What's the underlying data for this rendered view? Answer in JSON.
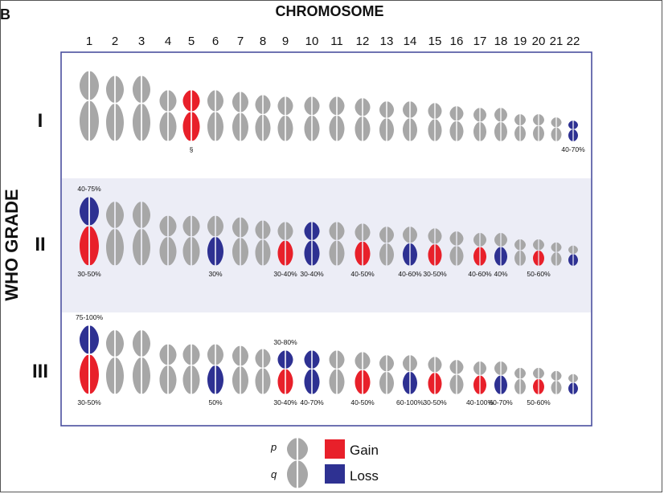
{
  "panel_letter": "B",
  "x_title": "CHROMOSOME",
  "y_title": "WHO GRADE",
  "chromosome_numbers": [
    "1",
    "2",
    "3",
    "4",
    "5",
    "6",
    "7",
    "8",
    "9",
    "10",
    "11",
    "12",
    "13",
    "14",
    "15",
    "16",
    "17",
    "18",
    "19",
    "20",
    "21",
    "22"
  ],
  "colors": {
    "gain": "#e8202a",
    "loss": "#2e3192",
    "normal": "#a7a7a7",
    "panel_border": "#4a4f9e",
    "band": "#ecedf6"
  },
  "grades": [
    {
      "label": "I",
      "arms": [
        {
          "chr": 5,
          "arm": "both",
          "status": "gain"
        },
        {
          "chr": 22,
          "arm": "both",
          "status": "loss"
        }
      ],
      "annotations": [
        {
          "chr": 5,
          "pos": "below",
          "text": "§"
        },
        {
          "chr": 22,
          "pos": "below",
          "text": "40-70%"
        }
      ]
    },
    {
      "label": "II",
      "arms": [
        {
          "chr": 1,
          "arm": "p",
          "status": "loss"
        },
        {
          "chr": 1,
          "arm": "q",
          "status": "gain"
        },
        {
          "chr": 6,
          "arm": "q",
          "status": "loss"
        },
        {
          "chr": 9,
          "arm": "q",
          "status": "gain"
        },
        {
          "chr": 10,
          "arm": "both",
          "status": "loss"
        },
        {
          "chr": 12,
          "arm": "q",
          "status": "gain"
        },
        {
          "chr": 14,
          "arm": "q",
          "status": "loss"
        },
        {
          "chr": 15,
          "arm": "q",
          "status": "gain"
        },
        {
          "chr": 17,
          "arm": "q",
          "status": "gain"
        },
        {
          "chr": 18,
          "arm": "q",
          "status": "loss"
        },
        {
          "chr": 20,
          "arm": "q",
          "status": "gain"
        },
        {
          "chr": 22,
          "arm": "q",
          "status": "loss"
        }
      ],
      "annotations": [
        {
          "chr": 1,
          "pos": "above",
          "text": "40-75%"
        },
        {
          "chr": 1,
          "pos": "below",
          "text": "30-50%"
        },
        {
          "chr": 6,
          "pos": "below",
          "text": "30%"
        },
        {
          "chr": 9,
          "pos": "below",
          "text": "30-40%"
        },
        {
          "chr": 10,
          "pos": "below",
          "text": "30-40%"
        },
        {
          "chr": 12,
          "pos": "below",
          "text": "40-50%"
        },
        {
          "chr": 14,
          "pos": "below",
          "text": "40-60%"
        },
        {
          "chr": 15,
          "pos": "below",
          "text": "30-50%"
        },
        {
          "chr": 17,
          "pos": "below",
          "text": "40-60%"
        },
        {
          "chr": 18,
          "pos": "below",
          "text": "40%"
        },
        {
          "chr": 20,
          "pos": "below",
          "text": "50-60%"
        }
      ]
    },
    {
      "label": "III",
      "arms": [
        {
          "chr": 1,
          "arm": "p",
          "status": "loss"
        },
        {
          "chr": 1,
          "arm": "q",
          "status": "gain"
        },
        {
          "chr": 6,
          "arm": "q",
          "status": "loss"
        },
        {
          "chr": 9,
          "arm": "p",
          "status": "loss"
        },
        {
          "chr": 9,
          "arm": "q",
          "status": "gain"
        },
        {
          "chr": 10,
          "arm": "both",
          "status": "loss"
        },
        {
          "chr": 12,
          "arm": "q",
          "status": "gain"
        },
        {
          "chr": 14,
          "arm": "q",
          "status": "loss"
        },
        {
          "chr": 15,
          "arm": "q",
          "status": "gain"
        },
        {
          "chr": 17,
          "arm": "q",
          "status": "gain"
        },
        {
          "chr": 18,
          "arm": "q",
          "status": "loss"
        },
        {
          "chr": 20,
          "arm": "q",
          "status": "gain"
        },
        {
          "chr": 22,
          "arm": "q",
          "status": "loss"
        }
      ],
      "annotations": [
        {
          "chr": 1,
          "pos": "above",
          "text": "75-100%"
        },
        {
          "chr": 1,
          "pos": "below",
          "text": "30-50%"
        },
        {
          "chr": 6,
          "pos": "below",
          "text": "50%"
        },
        {
          "chr": 9,
          "pos": "above",
          "text": "30-80%"
        },
        {
          "chr": 9,
          "pos": "below",
          "text": "30-40%"
        },
        {
          "chr": 10,
          "pos": "below",
          "text": "40-70%"
        },
        {
          "chr": 12,
          "pos": "below",
          "text": "40-50%"
        },
        {
          "chr": 14,
          "pos": "below",
          "text": "60-100%"
        },
        {
          "chr": 15,
          "pos": "below",
          "text": "30-50%"
        },
        {
          "chr": 17,
          "pos": "below",
          "text": "40-100%"
        },
        {
          "chr": 18,
          "pos": "below",
          "text": "60-70%"
        },
        {
          "chr": 20,
          "pos": "below",
          "text": "50-60%"
        }
      ]
    }
  ],
  "legend": {
    "p_label": "p",
    "q_label": "q",
    "gain_label": "Gain",
    "loss_label": "Loss"
  }
}
